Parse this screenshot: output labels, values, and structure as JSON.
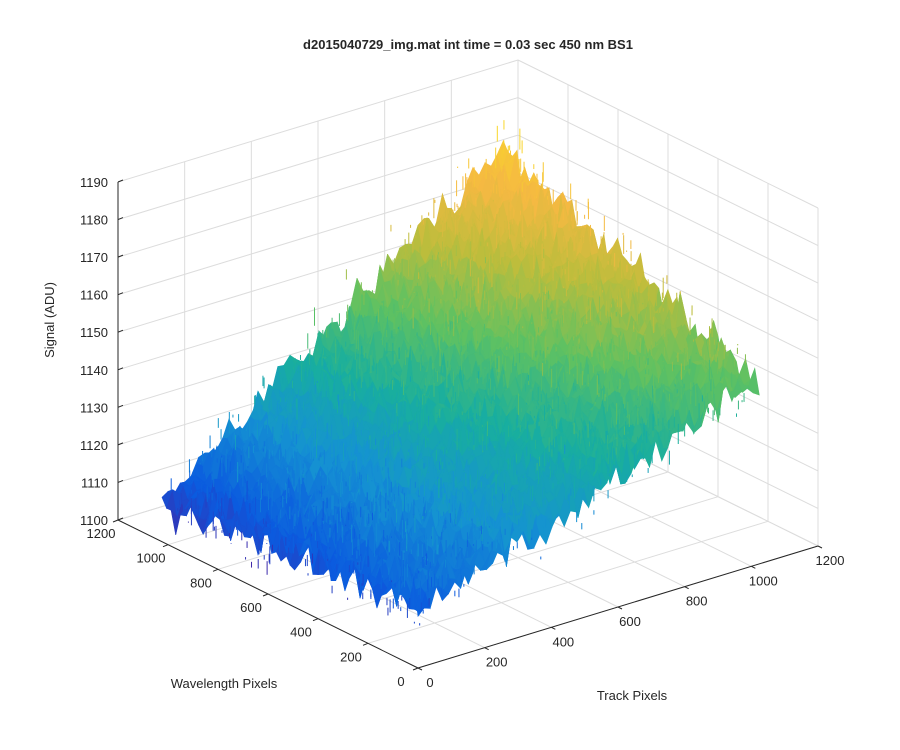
{
  "chart_data": {
    "type": "surface",
    "title": "d2015040729_img.mat int time = 0.03 sec  450 nm BS1",
    "xlabel": "Track Pixels",
    "ylabel": "Wavelength Pixels",
    "zlabel": "Signal (ADU)",
    "xlim": [
      0,
      1200
    ],
    "ylim": [
      0,
      1200
    ],
    "zlim": [
      1100,
      1190
    ],
    "x_ticks": [
      0,
      200,
      400,
      600,
      800,
      1000,
      1200
    ],
    "y_ticks": [
      0,
      200,
      400,
      600,
      800,
      1000,
      1200
    ],
    "z_ticks": [
      1100,
      1110,
      1120,
      1130,
      1140,
      1150,
      1160,
      1170,
      1180,
      1190
    ],
    "x_tick_labels": [
      "0",
      "200",
      "400",
      "600",
      "800",
      "1000",
      "1200"
    ],
    "y_tick_labels": [
      "0",
      "200",
      "400",
      "600",
      "800",
      "1000",
      "1200"
    ],
    "z_tick_labels": [
      "1100",
      "1110",
      "1120",
      "1130",
      "1140",
      "1150",
      "1160",
      "1170",
      "1180",
      "1190"
    ],
    "data_extent": {
      "track_pixels": [
        0,
        1024
      ],
      "wavelength_pixels": [
        0,
        1024
      ]
    },
    "surface_corners": [
      {
        "track": 0,
        "wavelength": 1024,
        "signal": 1110
      },
      {
        "track": 0,
        "wavelength": 0,
        "signal": 1117
      },
      {
        "track": 1024,
        "wavelength": 1024,
        "signal": 1177
      },
      {
        "track": 1024,
        "wavelength": 0,
        "signal": 1148
      }
    ],
    "noise_amplitude": 4,
    "colormap": "parula",
    "colormap_stops": [
      "#3e26a8",
      "#0b5bdf",
      "#1592d2",
      "#18ae9f",
      "#5ec162",
      "#bdbd3c",
      "#f5b942",
      "#f9d72a"
    ],
    "grid": true,
    "box": "on"
  }
}
